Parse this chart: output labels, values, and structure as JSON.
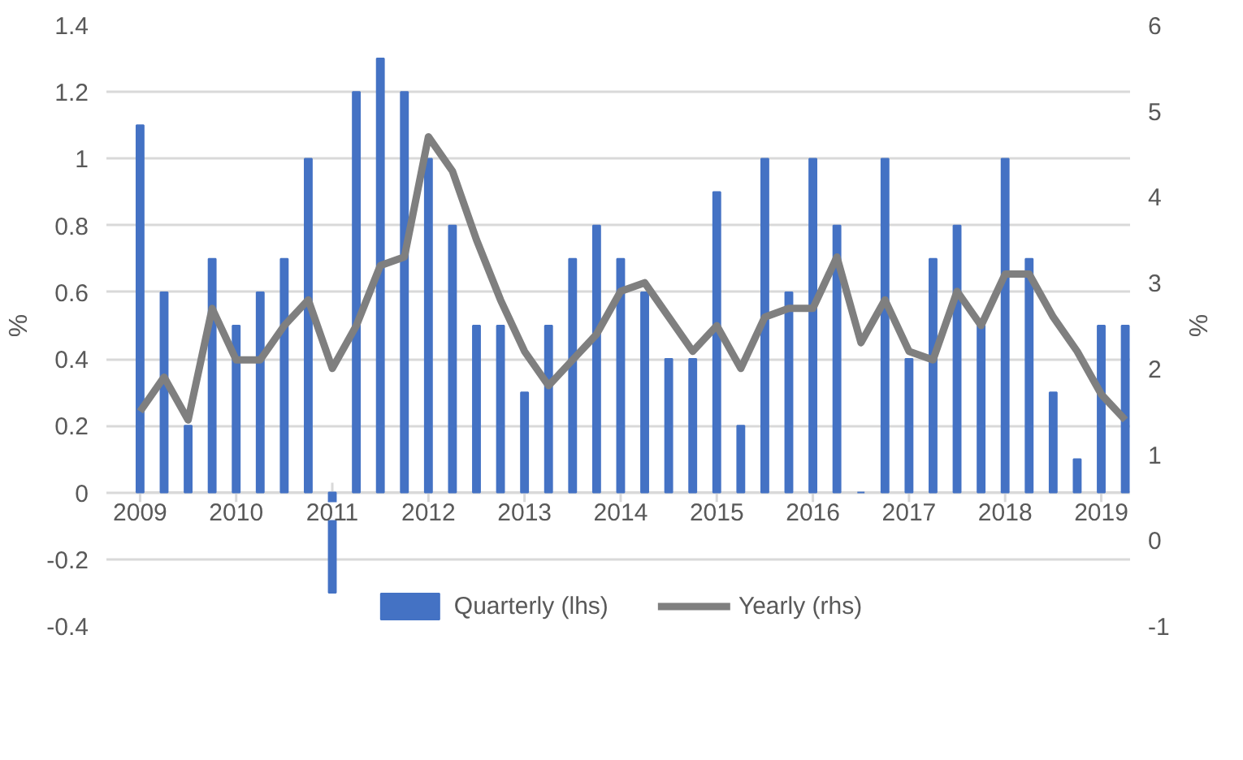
{
  "chart_data": {
    "type": "bar",
    "categories": [
      "2009",
      null,
      null,
      null,
      "2010",
      null,
      null,
      null,
      "2011",
      null,
      null,
      null,
      "2012",
      null,
      null,
      null,
      "2013",
      null,
      null,
      null,
      "2014",
      null,
      null,
      null,
      "2015",
      null,
      null,
      null,
      "2016",
      null,
      null,
      null,
      "2017",
      null,
      null,
      null,
      "2018",
      null,
      null,
      null,
      "2019",
      null
    ],
    "series": [
      {
        "name": "Quarterly (lhs)",
        "color": "#4472c4",
        "values": [
          1.1,
          0.6,
          0.2,
          0.7,
          0.5,
          0.6,
          0.7,
          1.0,
          -0.3,
          1.2,
          1.3,
          1.2,
          1.0,
          0.8,
          0.5,
          0.5,
          0.3,
          0.5,
          0.7,
          0.8,
          0.7,
          0.6,
          0.4,
          0.4,
          0.9,
          0.2,
          1.0,
          0.6,
          1.0,
          0.8,
          0,
          1.0,
          0.4,
          0.7,
          0.8,
          0.5,
          1.0,
          0.7,
          0.3,
          0.1,
          0.5,
          0.5
        ]
      },
      {
        "name": "Yearly (rhs)",
        "type": "line",
        "axis": "y2",
        "color": "#7f7f7f",
        "values": [
          1.5,
          1.9,
          1.4,
          2.7,
          2.1,
          2.1,
          2.5,
          2.8,
          2.0,
          2.5,
          3.2,
          3.3,
          4.7,
          4.3,
          3.5,
          2.8,
          2.2,
          1.8,
          2.1,
          2.4,
          2.9,
          3.0,
          2.6,
          2.2,
          2.5,
          2.0,
          2.6,
          2.7,
          2.7,
          3.3,
          2.3,
          2.8,
          2.2,
          2.1,
          2.9,
          2.5,
          3.1,
          3.1,
          2.6,
          2.2,
          1.7,
          1.4
        ]
      }
    ],
    "ylabel": "%",
    "y2label": "%",
    "ylim": [
      -0.4,
      1.4
    ],
    "yticks": [
      -0.4,
      -0.2,
      0,
      0.2,
      0.4,
      0.6,
      0.8,
      1,
      1.2,
      1.4
    ],
    "y2lim": [
      -1,
      6
    ],
    "y2ticks": [
      -1,
      0,
      1,
      2,
      3,
      4,
      5,
      6
    ],
    "grid": "y",
    "legend": "bottom"
  }
}
